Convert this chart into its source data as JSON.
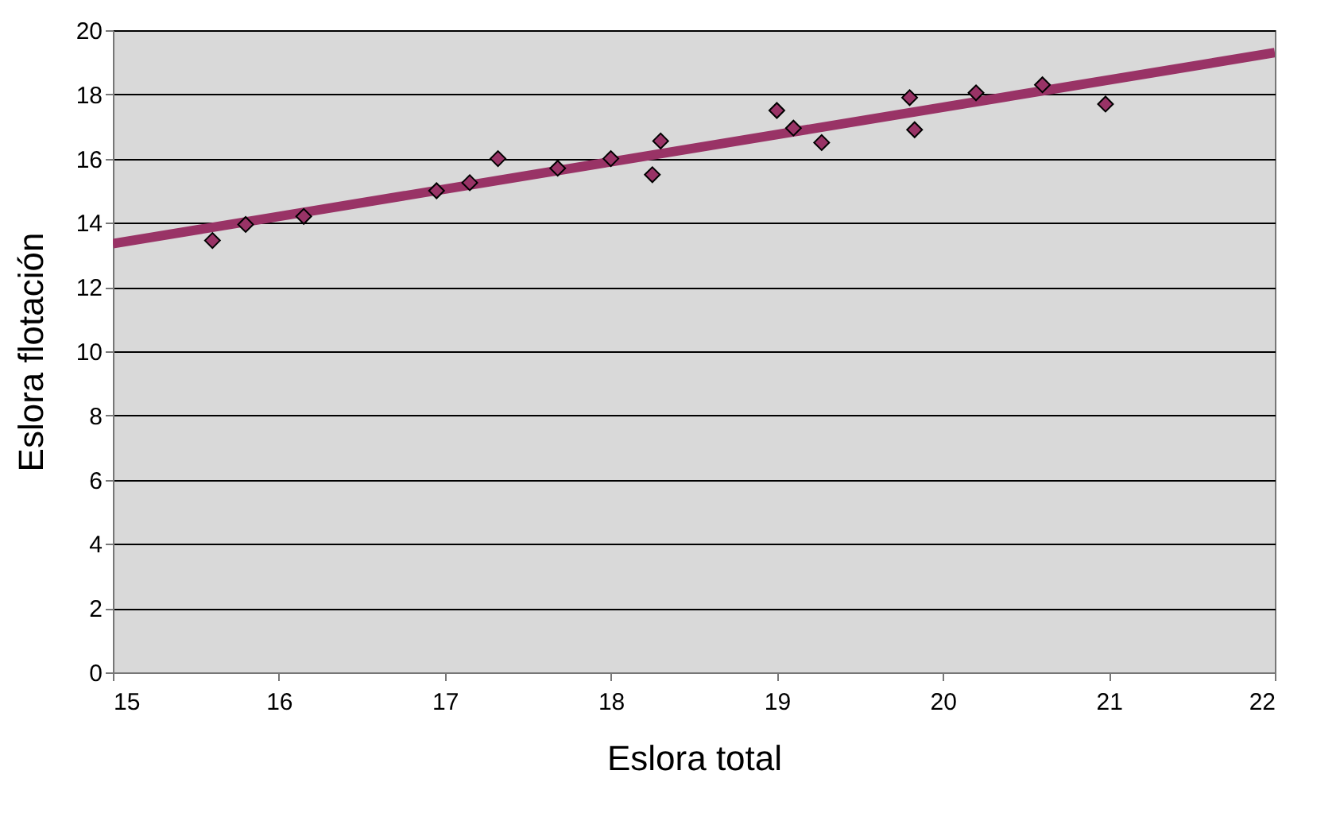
{
  "chart_data": {
    "type": "scatter",
    "xlabel": "Eslora total",
    "ylabel": "Eslora flotación",
    "xlim": [
      15,
      22
    ],
    "xticks": [
      15,
      16,
      17,
      18,
      19,
      20,
      21,
      22
    ],
    "ylim": [
      0,
      20
    ],
    "yticks": [
      0,
      2,
      4,
      6,
      8,
      10,
      12,
      14,
      16,
      18,
      20
    ],
    "grid": "y",
    "series": [
      {
        "type": "line",
        "marker": "none",
        "color": "#993366",
        "x": [
          15,
          22
        ],
        "values": [
          13.35,
          19.3
        ]
      },
      {
        "marker": "diamond",
        "color": "#993366",
        "x": [
          15.6,
          15.8,
          16.15,
          16.95,
          17.15,
          17.32,
          17.68,
          18.0,
          18.25,
          18.3,
          19.0,
          19.1,
          19.27,
          19.8,
          19.83,
          20.2,
          20.6,
          20.98
        ],
        "values": [
          13.45,
          13.95,
          14.2,
          15.0,
          15.25,
          16.0,
          15.7,
          16.0,
          15.5,
          16.55,
          17.5,
          16.95,
          16.5,
          17.9,
          16.9,
          18.05,
          18.3,
          17.7
        ]
      }
    ]
  }
}
